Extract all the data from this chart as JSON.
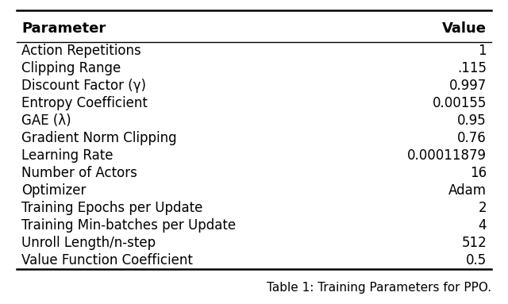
{
  "parameters": [
    "Action Repetitions",
    "Clipping Range",
    "Discount Factor (γ)",
    "Entropy Coefficient",
    "GAE (λ)",
    "Gradient Norm Clipping",
    "Learning Rate",
    "Number of Actors",
    "Optimizer",
    "Training Epochs per Update",
    "Training Min-batches per Update",
    "Unroll Length/n-step",
    "Value Function Coefficient"
  ],
  "values": [
    "1",
    ".115",
    "0.997",
    "0.00155",
    "0.95",
    "0.76",
    "0.00011879",
    "16",
    "Adam",
    "2",
    "4",
    "512",
    "0.5"
  ],
  "col_header": [
    "Parameter",
    "Value"
  ],
  "caption": "Table 1: Training Parameters for PPO.",
  "bg_color": "#ffffff",
  "text_color": "#000000",
  "header_fontsize": 13,
  "body_fontsize": 12,
  "caption_fontsize": 11
}
